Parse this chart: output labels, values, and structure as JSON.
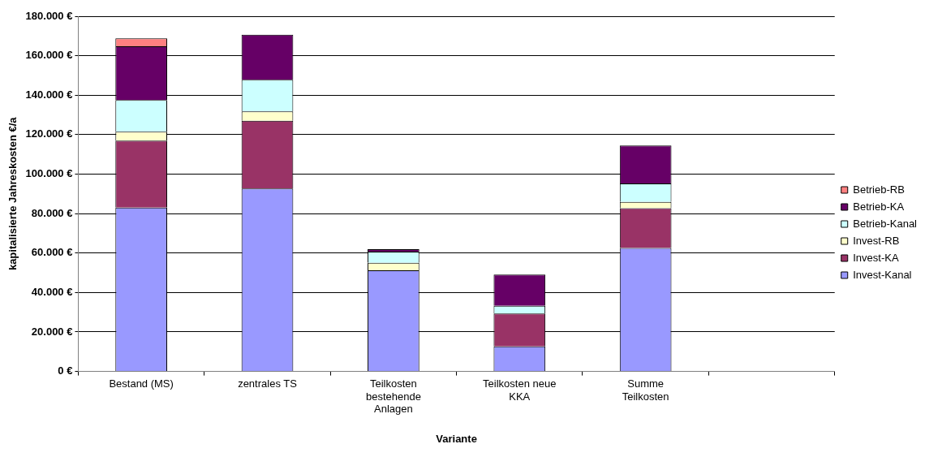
{
  "chart_data": {
    "type": "bar",
    "stacked": true,
    "xlabel": "Variante",
    "ylabel": "kapitalisierte Jahreskosten €/a",
    "categories": [
      "Bestand (MS)",
      "zentrales TS",
      "Teilkosten bestehende Anlagen",
      "Teilkosten neue KKA",
      "Summe Teilkosten",
      null
    ],
    "series": [
      {
        "name": "Invest-Kanal",
        "color": "#9999ff",
        "values": [
          83000,
          92700,
          51300,
          12700,
          62600,
          null
        ]
      },
      {
        "name": "Invest-KA",
        "color": "#993366",
        "values": [
          34000,
          34300,
          0,
          16600,
          20100,
          null
        ]
      },
      {
        "name": "Invest-RB",
        "color": "#ffffcc",
        "values": [
          4500,
          4800,
          3800,
          0,
          3200,
          null
        ]
      },
      {
        "name": "Betrieb-Kanal",
        "color": "#ccffff",
        "values": [
          16000,
          16000,
          5600,
          4000,
          9400,
          null
        ]
      },
      {
        "name": "Betrieb-KA",
        "color": "#660066",
        "values": [
          27300,
          22800,
          1200,
          15800,
          19200,
          null
        ]
      },
      {
        "name": "Betrieb-RB",
        "color": "#ff8080",
        "values": [
          4000,
          null,
          0,
          0,
          0,
          null
        ]
      }
    ],
    "ylim": [
      0,
      180000
    ],
    "yticks": [
      {
        "value": 0,
        "label": "0 €"
      },
      {
        "value": 20000,
        "label": "20.000 €"
      },
      {
        "value": 40000,
        "label": "40.000 €"
      },
      {
        "value": 60000,
        "label": "60.000 €"
      },
      {
        "value": 80000,
        "label": "80.000 €"
      },
      {
        "value": 100000,
        "label": "100.000 €"
      },
      {
        "value": 120000,
        "label": "120.000 €"
      },
      {
        "value": 140000,
        "label": "140.000 €"
      },
      {
        "value": 160000,
        "label": "160.000 €"
      },
      {
        "value": 180000,
        "label": "180.000 €"
      }
    ],
    "grid": "y",
    "legend": "right"
  }
}
